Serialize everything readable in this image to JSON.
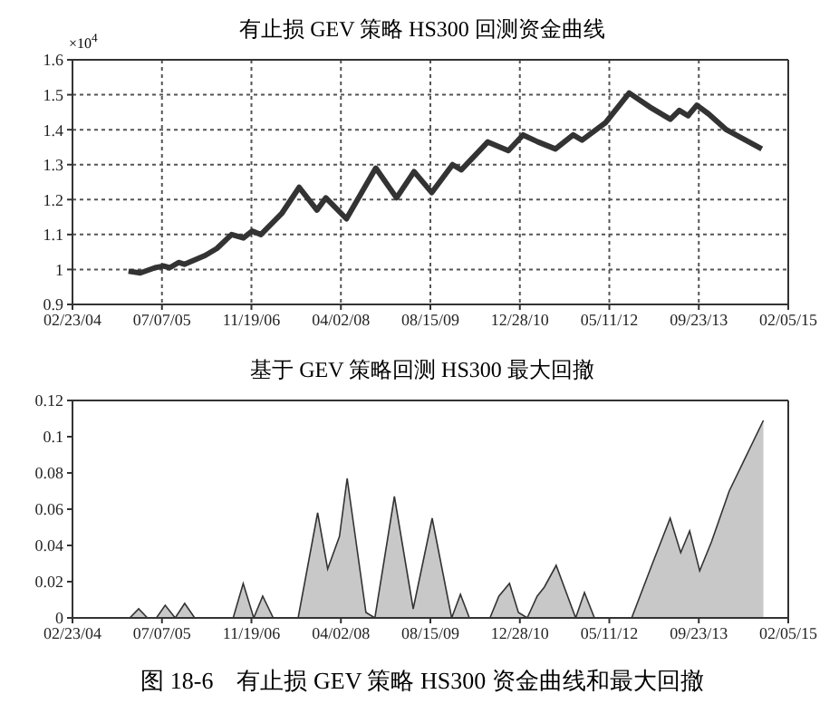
{
  "chart_data": [
    {
      "type": "line",
      "title": "有止损 GEV 策略 HS300 回测资金曲线",
      "annotations": [
        "×10$^{4}$"
      ],
      "x": [
        "2005-01-01",
        "2005-03-08",
        "2005-05-29",
        "2005-07-17",
        "2005-08-19",
        "2005-10-08",
        "2005-11-09",
        "2006-03-05",
        "2006-05-10",
        "2006-07-31",
        "2006-10-05",
        "2006-11-23",
        "2007-01-11",
        "2007-05-07",
        "2007-08-13",
        "2007-11-20",
        "2008-01-09",
        "2008-05-03",
        "2008-10-14",
        "2009-02-07",
        "2009-05-16",
        "2009-08-23",
        "2009-12-17",
        "2010-02-04",
        "2010-07-02",
        "2010-10-25",
        "2011-01-15",
        "2011-04-08",
        "2011-07-15",
        "2011-10-22",
        "2011-12-11",
        "2012-04-20",
        "2012-08-30",
        "2012-12-23",
        "2013-04-17",
        "2013-06-06",
        "2013-07-25",
        "2013-09-12",
        "2013-11-17",
        "2014-02-24",
        "2014-09-10"
      ],
      "series": [
        {
          "color": "#333333",
          "values": [
            0.995,
            0.99,
            1.005,
            1.01,
            1.005,
            1.02,
            1.015,
            1.04,
            1.06,
            1.1,
            1.09,
            1.11,
            1.1,
            1.16,
            1.235,
            1.17,
            1.205,
            1.145,
            1.29,
            1.205,
            1.28,
            1.22,
            1.3,
            1.285,
            1.365,
            1.34,
            1.385,
            1.365,
            1.345,
            1.385,
            1.37,
            1.42,
            1.505,
            1.465,
            1.43,
            1.455,
            1.44,
            1.47,
            1.445,
            1.4,
            1.345
          ]
        }
      ],
      "xlim": [
        "2004-02-23",
        "2015-02-05"
      ],
      "xticks": [
        {
          "value": "2004-02-23",
          "label": "02/23/04"
        },
        {
          "value": "2005-07-07",
          "label": "07/07/05"
        },
        {
          "value": "2006-11-19",
          "label": "11/19/06"
        },
        {
          "value": "2008-04-02",
          "label": "04/02/08"
        },
        {
          "value": "2009-08-15",
          "label": "08/15/09"
        },
        {
          "value": "2010-12-28",
          "label": "12/28/10"
        },
        {
          "value": "2012-05-11",
          "label": "05/11/12"
        },
        {
          "value": "2013-09-23",
          "label": "09/23/13"
        },
        {
          "value": "2015-02-05",
          "label": "02/05/15"
        }
      ],
      "ylim": [
        0.9,
        1.6
      ],
      "yticks": [
        0.9,
        1,
        1.1,
        1.2,
        1.3,
        1.4,
        1.5,
        1.6
      ],
      "grid": true
    },
    {
      "type": "area",
      "title": "基于 GEV 策略回测 HS300 最大回撤",
      "annotations": [
        "图 18-6　有止损 GEV 策略 HS300 资金曲线和最大回撤"
      ],
      "x": [
        "2004-02-23",
        "2005-01-08",
        "2005-02-27",
        "2005-04-17",
        "2005-06-06",
        "2005-07-25",
        "2005-09-19",
        "2005-11-11",
        "2006-01-06",
        "2006-08-09",
        "2006-10-04",
        "2006-12-02",
        "2007-01-21",
        "2007-03-21",
        "2007-08-07",
        "2007-11-24",
        "2008-01-19",
        "2008-03-25",
        "2008-05-07",
        "2008-08-20",
        "2008-10-09",
        "2009-01-26",
        "2009-05-11",
        "2009-08-25",
        "2009-12-12",
        "2010-01-30",
        "2010-03-21",
        "2010-07-14",
        "2010-09-02",
        "2010-10-31",
        "2010-12-20",
        "2011-02-07",
        "2011-04-04",
        "2011-05-14",
        "2011-07-19",
        "2011-11-05",
        "2011-12-24",
        "2012-02-18",
        "2012-09-13",
        "2013-01-07",
        "2013-04-16",
        "2013-06-14",
        "2013-08-03",
        "2013-09-28",
        "2013-12-03",
        "2014-03-12",
        "2014-09-19"
      ],
      "series": [
        {
          "color": "#c8c8c8",
          "values": [
            0,
            0,
            0.005,
            0,
            0,
            0.007,
            0,
            0.008,
            0,
            0,
            0.019,
            0,
            0.012,
            0,
            0,
            0.058,
            0.027,
            0.045,
            0.077,
            0.003,
            0,
            0.067,
            0.005,
            0.055,
            0,
            0.013,
            0,
            0,
            0.012,
            0.019,
            0.003,
            0,
            0.012,
            0.017,
            0.029,
            0,
            0.014,
            0,
            0,
            0.03,
            0.055,
            0.036,
            0.048,
            0.026,
            0.042,
            0.07,
            0.109
          ]
        }
      ],
      "xlim": [
        "2004-02-23",
        "2015-02-05"
      ],
      "xticks": [
        {
          "value": "2004-02-23",
          "label": "02/23/04"
        },
        {
          "value": "2005-07-07",
          "label": "07/07/05"
        },
        {
          "value": "2006-11-19",
          "label": "11/19/06"
        },
        {
          "value": "2008-04-02",
          "label": "04/02/08"
        },
        {
          "value": "2009-08-15",
          "label": "08/15/09"
        },
        {
          "value": "2010-12-28",
          "label": "12/28/10"
        },
        {
          "value": "2012-05-11",
          "label": "05/11/12"
        },
        {
          "value": "2013-09-23",
          "label": "09/23/13"
        },
        {
          "value": "2015-02-05",
          "label": "02/05/15"
        }
      ],
      "ylim": [
        0,
        0.12
      ],
      "yticks": [
        0,
        0.02,
        0.04,
        0.06,
        0.08,
        0.1,
        0.12
      ]
    }
  ]
}
